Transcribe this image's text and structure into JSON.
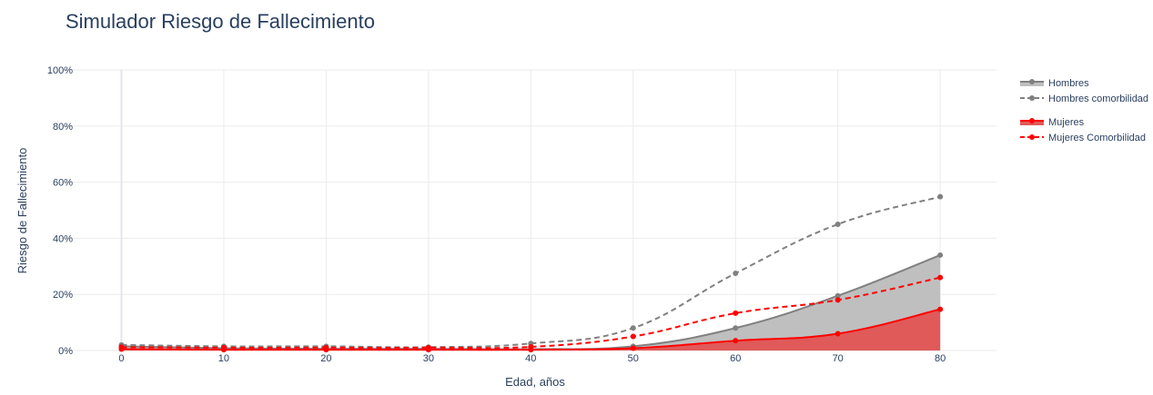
{
  "page_title": "Simulador Riesgo de Fallecimiento",
  "chart_data": {
    "type": "line",
    "title": "Simulador Riesgo de Fallecimiento",
    "xlabel": "Edad, años",
    "ylabel": "Riesgo de Fallecimiento",
    "x": [
      0,
      10,
      20,
      30,
      40,
      50,
      60,
      70,
      80
    ],
    "xticks": [
      "0",
      "10",
      "20",
      "30",
      "40",
      "50",
      "60",
      "70",
      "80"
    ],
    "xlim": [
      -6,
      85.5
    ],
    "ylim": [
      0,
      100
    ],
    "yticks": [
      "0%",
      "20%",
      "40%",
      "60%",
      "80%",
      "100%"
    ],
    "ytick_values": [
      0,
      20,
      40,
      60,
      80,
      100
    ],
    "grid": true,
    "legend_position": "right",
    "series": [
      {
        "name": "Hombres",
        "style": "area",
        "color": "#808080",
        "fill": "#bfbfbf",
        "values": [
          1.5,
          0.8,
          0.6,
          0.6,
          0.5,
          1.5,
          8,
          19.5,
          34
        ]
      },
      {
        "name": "Hombres comorbilidad",
        "style": "dash",
        "color": "#808080",
        "values": [
          2,
          1.5,
          1.5,
          1.2,
          2.5,
          8,
          27.5,
          45,
          54.8
        ]
      },
      {
        "name": "Mujeres",
        "style": "area",
        "color": "#ff0000",
        "fill": "#e05a5a",
        "values": [
          0.5,
          0.3,
          0.3,
          0.3,
          0.3,
          0.8,
          3.5,
          6,
          14.7
        ]
      },
      {
        "name": "Mujeres Comorbilidad",
        "style": "dash",
        "color": "#ff0000",
        "values": [
          1.2,
          1,
          1,
          1,
          1.3,
          5,
          13.3,
          18,
          26
        ]
      }
    ]
  }
}
